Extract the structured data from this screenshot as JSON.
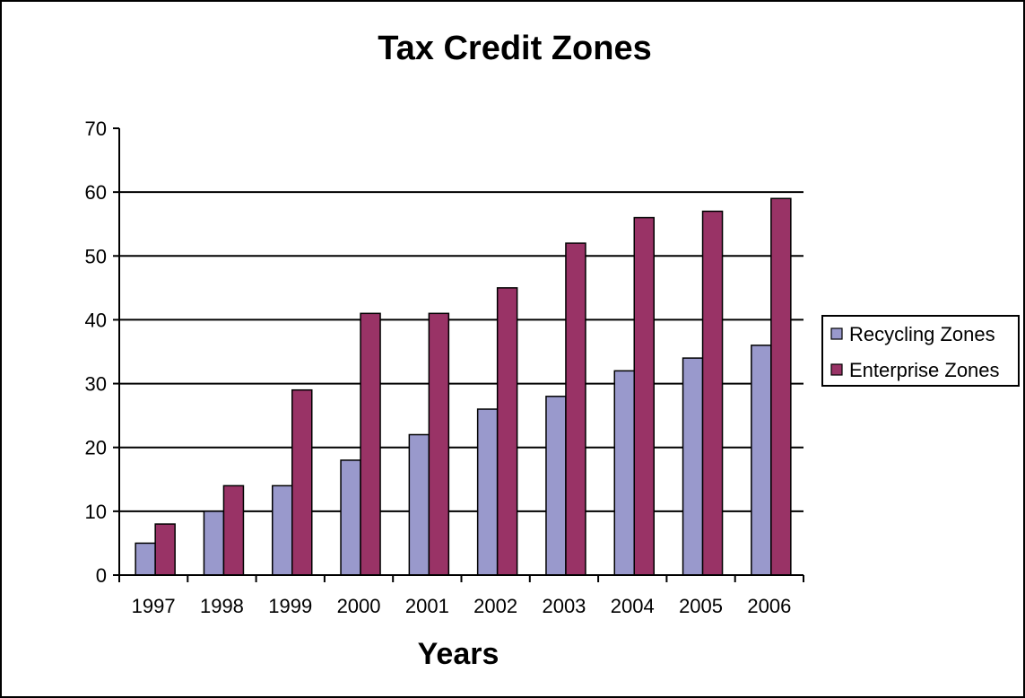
{
  "chart_data": {
    "type": "bar",
    "title": "Tax Credit Zones",
    "xlabel": "Years",
    "ylabel": "",
    "ylim": [
      0,
      70
    ],
    "yticks": [
      0,
      10,
      20,
      30,
      40,
      50,
      60,
      70
    ],
    "grid": true,
    "legend_position": "right",
    "categories": [
      "1997",
      "1998",
      "1999",
      "2000",
      "2001",
      "2002",
      "2003",
      "2004",
      "2005",
      "2006"
    ],
    "series": [
      {
        "name": "Recycling Zones",
        "color": "#9999cc",
        "values": [
          5,
          10,
          14,
          18,
          22,
          26,
          28,
          32,
          34,
          36
        ]
      },
      {
        "name": "Enterprise Zones",
        "color": "#993366",
        "values": [
          8,
          14,
          29,
          41,
          41,
          45,
          52,
          56,
          57,
          59
        ]
      }
    ]
  }
}
